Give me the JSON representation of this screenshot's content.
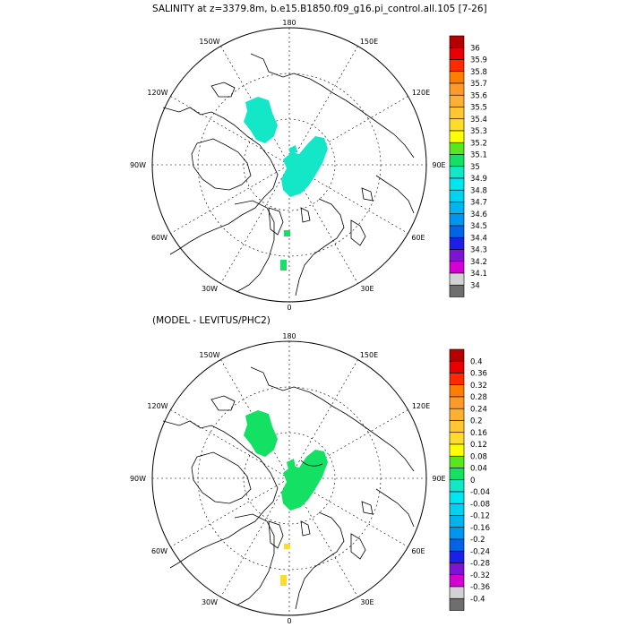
{
  "panels": [
    {
      "title": "SALINITY at z=3379.8m, b.e15.B1850.f09_g16.pi_control.all.105 [7-26]",
      "lon_labels": {
        "top": "180",
        "bottom": "0",
        "left": "90W",
        "right": "90E",
        "ul1": "150W",
        "ul2": "120W",
        "ur1": "150E",
        "ur2": "120E",
        "ll1": "60W",
        "ll2": "30W",
        "lr1": "60E",
        "lr2": "30E"
      },
      "colorbar": {
        "labels": [
          "36",
          "35.9",
          "35.8",
          "35.7",
          "35.6",
          "35.5",
          "35.4",
          "35.3",
          "35.2",
          "35.1",
          "35",
          "34.9",
          "34.8",
          "34.7",
          "34.6",
          "34.5",
          "34.4",
          "34.3",
          "34.2",
          "34.1",
          "34"
        ],
        "colors": [
          "#b40000",
          "#e60000",
          "#ff2a00",
          "#ff7d00",
          "#ff9a2a",
          "#ffb032",
          "#ffc832",
          "#ffdc2a",
          "#ffff00",
          "#5ae61e",
          "#14e164",
          "#14e6c8",
          "#00e6f0",
          "#00d2f0",
          "#00b4f0",
          "#0096f0",
          "#0064e6",
          "#1e1eeb",
          "#7d14d2",
          "#d200d2",
          "#d2d2d2",
          "#6e6e6e"
        ]
      },
      "blobs": [
        {
          "name": "canada-basin-patch",
          "color": "#14e6c8"
        },
        {
          "name": "eurasian-basin-patch",
          "color": "#14e6c8"
        },
        {
          "name": "small-patch-1",
          "color": "#14e164"
        },
        {
          "name": "small-patch-2",
          "color": "#14e164"
        }
      ]
    },
    {
      "title": "(MODEL - LEVITUS/PHC2)",
      "lon_labels": {
        "top": "180",
        "bottom": "0",
        "left": "90W",
        "right": "90E",
        "ul1": "150W",
        "ul2": "120W",
        "ur1": "150E",
        "ur2": "120E",
        "ll1": "60W",
        "ll2": "30W",
        "lr1": "60E",
        "lr2": "30E"
      },
      "colorbar": {
        "labels": [
          "0.4",
          "0.36",
          "0.32",
          "0.28",
          "0.24",
          "0.2",
          "0.16",
          "0.12",
          "0.08",
          "0.04",
          "0",
          "-0.04",
          "-0.08",
          "-0.12",
          "-0.16",
          "-0.2",
          "-0.24",
          "-0.28",
          "-0.32",
          "-0.36",
          "-0.4"
        ],
        "colors": [
          "#b40000",
          "#e60000",
          "#ff2a00",
          "#ff7d00",
          "#ff9a2a",
          "#ffb032",
          "#ffc832",
          "#ffdc2a",
          "#ffff00",
          "#5ae61e",
          "#14e164",
          "#14e6c8",
          "#00e6f0",
          "#00d2f0",
          "#00b4f0",
          "#0096f0",
          "#0064e6",
          "#1e1eeb",
          "#7d14d2",
          "#d200d2",
          "#d2d2d2",
          "#6e6e6e"
        ]
      },
      "blobs": [
        {
          "name": "canada-basin-patch",
          "color": "#14e164"
        },
        {
          "name": "eurasian-basin-patch",
          "color": "#14e164"
        },
        {
          "name": "small-patch-1",
          "color": "#ffdc2a"
        },
        {
          "name": "small-patch-2",
          "color": "#ffdc2a"
        }
      ]
    }
  ]
}
